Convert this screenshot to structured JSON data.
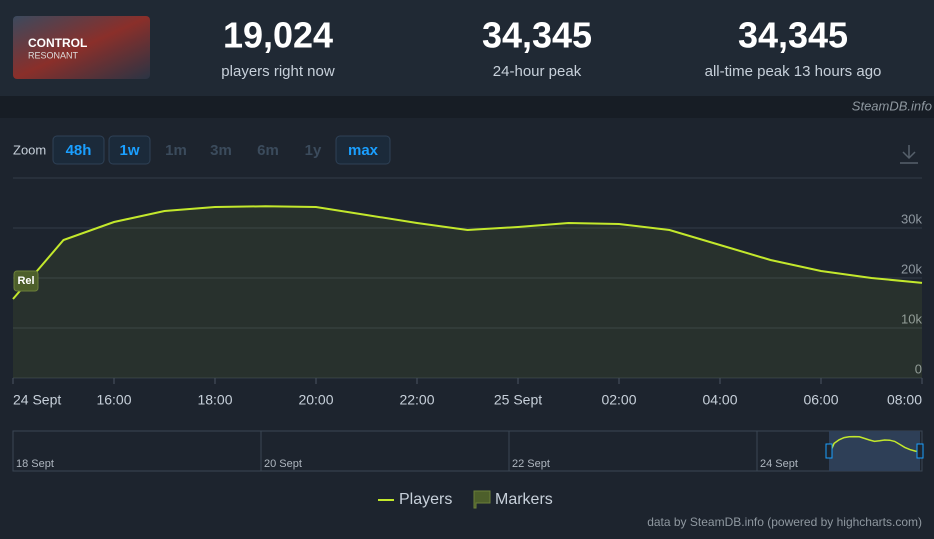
{
  "header": {
    "game_logo": {
      "title": "CONTROL",
      "subtitle": "RESONANT"
    },
    "stats": [
      {
        "value": "19,024",
        "label": "players right now"
      },
      {
        "value": "34,345",
        "label": "24-hour peak"
      },
      {
        "value": "34,345",
        "label": "all-time peak 13 hours ago"
      }
    ],
    "watermark": "SteamDB.info"
  },
  "zoom": {
    "label": "Zoom",
    "buttons": [
      {
        "text": "48h",
        "enabled": true
      },
      {
        "text": "1w",
        "enabled": true
      },
      {
        "text": "1m",
        "enabled": false
      },
      {
        "text": "3m",
        "enabled": false
      },
      {
        "text": "6m",
        "enabled": false
      },
      {
        "text": "1y",
        "enabled": false
      },
      {
        "text": "max",
        "enabled": true
      }
    ]
  },
  "chart_data": {
    "type": "line",
    "categories": [
      "24 Sept",
      null,
      "16:00",
      null,
      "18:00",
      null,
      "20:00",
      null,
      "22:00",
      null,
      "25 Sept",
      null,
      "02:00",
      null,
      "04:00",
      null,
      "06:00",
      null,
      "08:00"
    ],
    "series": [
      {
        "name": "Players",
        "color": "#c3e82c",
        "values": [
          15800,
          27600,
          31200,
          33400,
          34200,
          34345,
          34200,
          32600,
          31000,
          29600,
          30200,
          31000,
          30800,
          29600,
          26600,
          23600,
          21400,
          20000,
          19024
        ]
      }
    ],
    "ylim": [
      0,
      40000
    ],
    "yticks": [
      0,
      {
        "value": 10000,
        "label": "10k"
      },
      {
        "value": 20000,
        "label": "20k"
      },
      {
        "value": 30000,
        "label": "30k"
      }
    ],
    "grid": true,
    "markers": {
      "name": "Markers",
      "color": "#4d5f2b",
      "labels": [
        "Rel"
      ]
    },
    "navigator": {
      "labels": [
        "18 Sept",
        "20 Sept",
        "22 Sept",
        "24 Sept"
      ]
    },
    "credits": "data by SteamDB.info (powered by highcharts.com)"
  }
}
